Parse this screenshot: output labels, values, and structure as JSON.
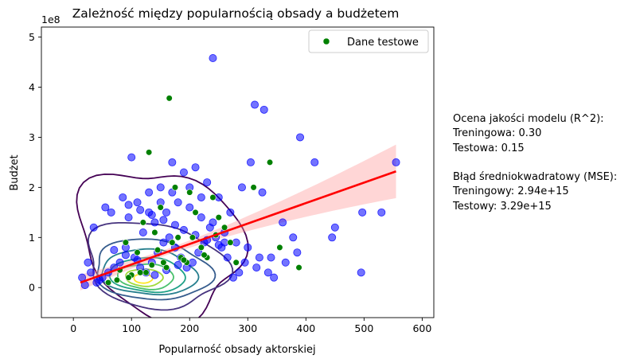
{
  "chart_data": {
    "type": "scatter",
    "title": "Zależność między popularnością obsady a budżetem",
    "xlabel": "Popularność obsady aktorskiej",
    "ylabel": "Budżet",
    "y_multiplier": "1e8",
    "xlim": [
      -55,
      620
    ],
    "ylim": [
      -0.6,
      5.2
    ],
    "x_ticks": [
      "0",
      "100",
      "200",
      "300",
      "400",
      "500",
      "600"
    ],
    "y_ticks": [
      "0",
      "1",
      "2",
      "3",
      "4",
      "5"
    ],
    "x_tick_values": [
      0,
      100,
      200,
      300,
      400,
      500,
      600
    ],
    "y_tick_values": [
      0,
      1,
      2,
      3,
      4,
      5
    ],
    "grid": false,
    "legend": {
      "placement": "top-right",
      "entries": [
        {
          "label": "Dane testowe",
          "color": "#008000"
        }
      ]
    },
    "colors": {
      "train": "#0000ff",
      "test": "#008000",
      "regression": "#ff0000",
      "ci_band": "#ff9999"
    },
    "series": [
      {
        "name": "Dane testowe",
        "x": [
          165,
          130,
          338,
          310,
          355,
          388,
          120,
          200,
          175,
          150,
          90,
          240,
          260,
          210,
          180,
          140,
          110,
          230,
          195,
          160,
          125,
          100,
          80,
          270,
          250,
          220,
          185,
          155,
          135,
          115,
          95,
          75,
          60,
          145,
          205,
          170,
          190,
          225,
          245,
          280
        ],
        "y": [
          3.78,
          2.7,
          2.5,
          2.0,
          0.8,
          0.4,
          1.3,
          1.9,
          2.0,
          1.6,
          0.9,
          1.8,
          1.2,
          1.5,
          1.0,
          1.1,
          0.7,
          0.6,
          0.5,
          0.4,
          0.3,
          0.25,
          0.35,
          0.9,
          1.4,
          0.8,
          0.6,
          0.5,
          0.45,
          0.3,
          0.2,
          0.15,
          0.1,
          0.75,
          1.0,
          0.9,
          0.55,
          0.65,
          1.05,
          0.5
        ]
      },
      {
        "name": "",
        "x": [
          240,
          312,
          328,
          390,
          497,
          530,
          555,
          415,
          378,
          450,
          495,
          360,
          445,
          340,
          305,
          290,
          270,
          250,
          230,
          210,
          190,
          170,
          150,
          130,
          110,
          100,
          95,
          85,
          65,
          55,
          35,
          25,
          15,
          120,
          140,
          160,
          180,
          200,
          220,
          260,
          280,
          300,
          315,
          320,
          335,
          345,
          365,
          385,
          325,
          295,
          285,
          275,
          265,
          255,
          245,
          235,
          225,
          215,
          205,
          195,
          185,
          175,
          165,
          155,
          145,
          135,
          125,
          115,
          105,
          90,
          80,
          70,
          60,
          50,
          45,
          40,
          30,
          20,
          170,
          150,
          130,
          200,
          220,
          240,
          260,
          140,
          160,
          180,
          110,
          90,
          70,
          250,
          230,
          210,
          190,
          175,
          155,
          135,
          115,
          95
        ],
        "y": [
          4.58,
          3.65,
          3.55,
          3.0,
          1.5,
          1.5,
          2.5,
          2.5,
          1.0,
          1.2,
          0.3,
          1.3,
          1.0,
          0.6,
          2.5,
          2.0,
          1.5,
          1.8,
          2.1,
          2.4,
          2.3,
          2.5,
          2.0,
          1.9,
          1.7,
          2.6,
          1.4,
          1.8,
          1.5,
          1.6,
          1.2,
          0.5,
          0.2,
          1.1,
          1.3,
          1.5,
          1.7,
          1.6,
          1.4,
          1.1,
          0.9,
          0.8,
          0.4,
          0.6,
          0.3,
          0.2,
          0.5,
          0.7,
          1.9,
          0.5,
          0.3,
          0.2,
          0.6,
          0.8,
          1.0,
          1.2,
          0.9,
          0.7,
          0.5,
          0.4,
          0.6,
          0.8,
          1.0,
          0.9,
          0.7,
          0.5,
          0.3,
          0.4,
          0.6,
          0.8,
          0.5,
          0.4,
          0.3,
          0.2,
          0.15,
          0.1,
          0.3,
          0.05,
          1.9,
          1.7,
          1.5,
          2.0,
          1.8,
          1.3,
          0.9,
          0.25,
          0.35,
          0.45,
          0.55,
          0.65,
          0.75,
          0.85,
          0.95,
          1.05,
          1.15,
          1.25,
          1.35,
          1.45,
          1.55,
          1.65
        ]
      },
      {
        "name": "",
        "type": "line",
        "x": [
          12,
          555
        ],
        "y": [
          0.1,
          2.32
        ]
      }
    ]
  },
  "stats": {
    "title": "Ocena jakości modelu (R^2):",
    "r2_train": "Treningowa: 0.30",
    "r2_test": "Testowa: 0.15",
    "mse_title": "Błąd średniokwadratowy (MSE):",
    "mse_train": "Treningowy: 2.94e+15",
    "mse_test": "Testowy: 3.29e+15"
  }
}
